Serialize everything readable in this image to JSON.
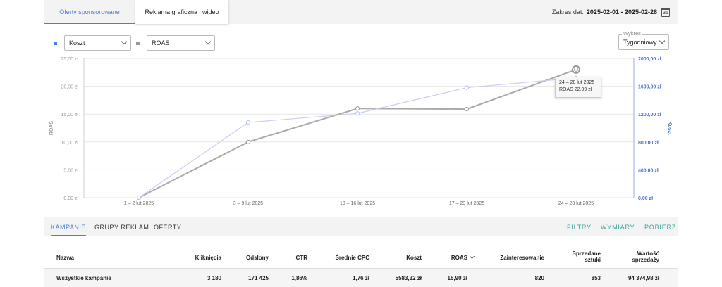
{
  "tabs": [
    {
      "label": "Oferty sponsorowane",
      "active": true
    },
    {
      "label": "Reklama graficzna i wideo",
      "active": false
    }
  ],
  "date_range": {
    "label": "Zakres dat:",
    "value": "2025-02-01 - 2025-02-28",
    "icon": "calendar-icon",
    "icon_text": "31"
  },
  "controls": {
    "metric1": {
      "value": "Koszt",
      "color": "#4a7fd4"
    },
    "metric2": {
      "value": "ROAS",
      "color": "#999999"
    },
    "chart_period": {
      "label": "Wykres",
      "value": "Tygodniowy"
    }
  },
  "chart_data": {
    "type": "line",
    "categories": [
      "1 – 2 lut 2025",
      "3 – 9 lut 2025",
      "10 – 16 lut 2025",
      "17 – 23 lut 2025",
      "24 – 28 lut 2025"
    ],
    "series": [
      {
        "name": "ROAS",
        "axis": "left",
        "color": "#aaaaaa",
        "values": [
          0,
          10.0,
          16.0,
          15.9,
          22.99
        ]
      },
      {
        "name": "Koszt",
        "axis": "right",
        "color": "#c8cdf2",
        "values": [
          0,
          1080,
          1210,
          1580,
          1720
        ]
      }
    ],
    "left_axis": {
      "label": "ROAS",
      "ticks": [
        "0,00 zł",
        "5,00 zł",
        "10,00 zł",
        "15,00 zł",
        "20,00 zł",
        "25,00 zł"
      ],
      "ylim": [
        0,
        25
      ]
    },
    "right_axis": {
      "label": "Koszt",
      "ticks": [
        "0,00 zł",
        "400,00 zł",
        "800,00 zł",
        "1200,00 zł",
        "1600,00 zł",
        "2000,00 zł"
      ],
      "ylim": [
        0,
        2000
      ]
    },
    "grid": true,
    "tooltip": {
      "line1": "24 – 28 lut 2025",
      "line2": "ROAS 22,99 zł"
    }
  },
  "subtabs": [
    "KAMPANIE",
    "GRUPY REKLAM",
    "OFERTY"
  ],
  "actions": [
    "FILTRY",
    "WYMIARY",
    "POBIERZ"
  ],
  "table": {
    "headers": [
      "Nazwa",
      "Kliknięcia",
      "Odsłony",
      "CTR",
      "Średnie CPC",
      "Koszt",
      "ROAS",
      "Zainteresowanie",
      "Sprzedane sztuki",
      "Wartość sprzedaży"
    ],
    "headers_split": {
      "sprzedane": [
        "Sprzedane",
        "sztuki"
      ],
      "wartosc": [
        "Wartość",
        "sprzedaży"
      ]
    },
    "rows": [
      [
        "Wszystkie kampanie",
        "3 180",
        "171 425",
        "1,86%",
        "1,76 zł",
        "5583,32 zł",
        "16,90 zł",
        "820",
        "853",
        "94 374,98 zł"
      ]
    ]
  }
}
